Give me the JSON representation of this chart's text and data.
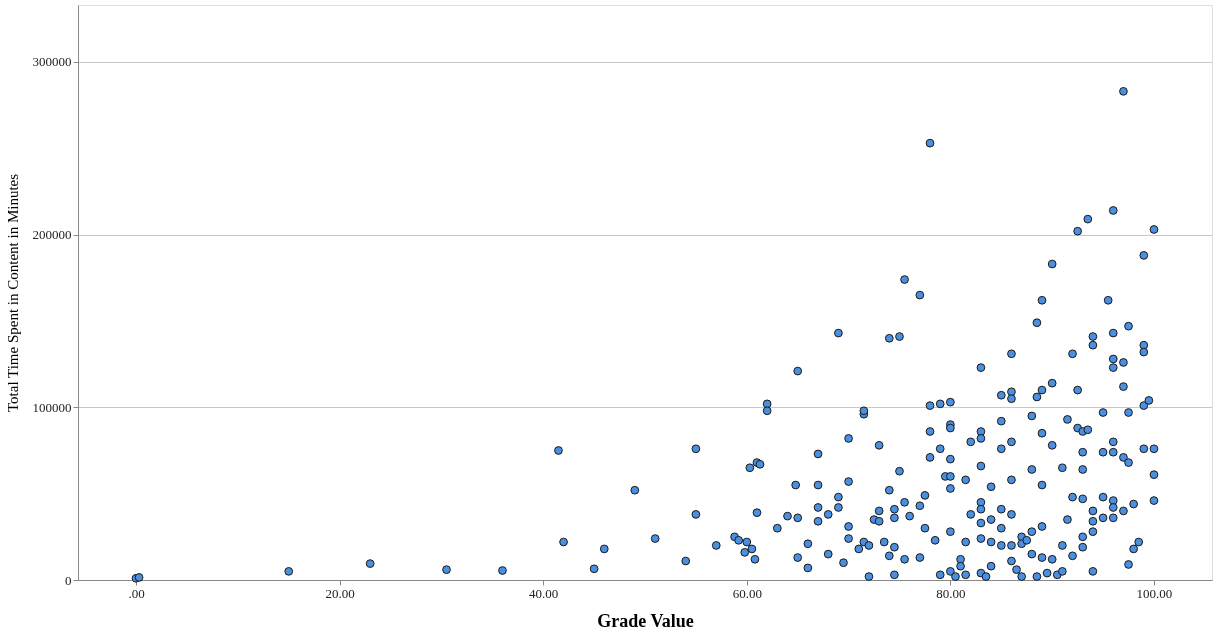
{
  "chart_data": {
    "type": "scatter",
    "xlabel": "Grade Value",
    "ylabel": "Total Time Spent in Content in Minutes",
    "xlim": [
      -5.7,
      105.7
    ],
    "ylim": [
      0,
      333000
    ],
    "xticks": [
      {
        "value": 0,
        "label": ".00"
      },
      {
        "value": 20,
        "label": "20.00"
      },
      {
        "value": 40,
        "label": "40.00"
      },
      {
        "value": 60,
        "label": "60.00"
      },
      {
        "value": 80,
        "label": "80.00"
      },
      {
        "value": 100,
        "label": "100.00"
      }
    ],
    "yticks": [
      0,
      100000,
      200000,
      300000
    ],
    "grid": "y",
    "marker": "circle",
    "series": [
      {
        "color": "#4a8fe0",
        "x": [
          0,
          0.3,
          15,
          23,
          30.5,
          36,
          41.5,
          42,
          45,
          46,
          49,
          51,
          54,
          55,
          55,
          57,
          58.8,
          59.2,
          59.8,
          60,
          60.3,
          60.5,
          60.8,
          61,
          61,
          61.3,
          62,
          62,
          63,
          64,
          64.8,
          65,
          65,
          65,
          66,
          66,
          67,
          67,
          67,
          67,
          68,
          68,
          69,
          69,
          69,
          69.5,
          70,
          70,
          70,
          70,
          71,
          71.5,
          71.5,
          71.5,
          72,
          72,
          72.5,
          73,
          73,
          73,
          73.5,
          74,
          74,
          74,
          74.5,
          74.5,
          74.5,
          74.5,
          75,
          75,
          75.5,
          75.5,
          75.5,
          76,
          77,
          77,
          77,
          77.5,
          77.5,
          78,
          78,
          78,
          78,
          78.5,
          79,
          79,
          79,
          79.5,
          80,
          80,
          80,
          80,
          80,
          80,
          80,
          80,
          80.5,
          81,
          81,
          81.5,
          81.5,
          81.5,
          82,
          82,
          83,
          83,
          83,
          83,
          83,
          83,
          83,
          83,
          83,
          83.5,
          84,
          84,
          84,
          84,
          85,
          85,
          85,
          85,
          85,
          85,
          86,
          86,
          86,
          86,
          86,
          86,
          86,
          86,
          86.5,
          87,
          87,
          87,
          87.5,
          88,
          88,
          88,
          88,
          88.5,
          88.5,
          88.5,
          89,
          89,
          89,
          89,
          89,
          89,
          89.5,
          90,
          90,
          90,
          90,
          90.5,
          91,
          91,
          91,
          91.5,
          91.5,
          92,
          92,
          92,
          92.5,
          92.5,
          92.5,
          93,
          93,
          93,
          93,
          93,
          93,
          93.5,
          93.5,
          94,
          94,
          94,
          94,
          94,
          94,
          95,
          95,
          95,
          95,
          95.5,
          96,
          96,
          96,
          96,
          96,
          96,
          96,
          96,
          96,
          97,
          97,
          97,
          97,
          97,
          97.5,
          97.5,
          97.5,
          97.5,
          98,
          98,
          98.5,
          99,
          99,
          99,
          99,
          99,
          99.5,
          100,
          100,
          100,
          100
        ],
        "values": [
          1000,
          1500,
          5000,
          9500,
          6000,
          5500,
          75000,
          22000,
          6500,
          18000,
          52000,
          24000,
          11000,
          76000,
          38000,
          20000,
          25000,
          23000,
          16000,
          22000,
          65000,
          18000,
          12000,
          39000,
          68000,
          67000,
          102000,
          98000,
          30000,
          37000,
          55000,
          36000,
          13000,
          121000,
          21000,
          7000,
          73000,
          55000,
          42000,
          34000,
          38000,
          15000,
          143000,
          48000,
          42000,
          10000,
          82000,
          57000,
          31000,
          24000,
          18000,
          22000,
          96000,
          98000,
          2000,
          20000,
          35000,
          78000,
          40000,
          34000,
          22000,
          140000,
          52000,
          14000,
          3000,
          41000,
          36000,
          19000,
          141000,
          63000,
          174000,
          45000,
          12000,
          37000,
          165000,
          43000,
          13000,
          49000,
          30000,
          253000,
          101000,
          86000,
          71000,
          23000,
          102000,
          76000,
          3000,
          60000,
          103000,
          90000,
          88000,
          70000,
          60000,
          53000,
          28000,
          5000,
          2000,
          12000,
          8000,
          22000,
          58000,
          3000,
          80000,
          38000,
          123000,
          86000,
          82000,
          66000,
          45000,
          41000,
          33000,
          24000,
          4000,
          2000,
          54000,
          35000,
          22000,
          8000,
          107000,
          92000,
          76000,
          41000,
          30000,
          20000,
          131000,
          109000,
          105000,
          80000,
          58000,
          38000,
          20000,
          11000,
          6000,
          25000,
          21000,
          2000,
          23000,
          95000,
          64000,
          28000,
          15000,
          149000,
          106000,
          2000,
          162000,
          110000,
          85000,
          55000,
          31000,
          13000,
          4000,
          183000,
          114000,
          78000,
          12000,
          3000,
          65000,
          20000,
          5000,
          93000,
          35000,
          131000,
          48000,
          14000,
          202000,
          110000,
          88000,
          86000,
          74000,
          64000,
          47000,
          25000,
          19000,
          209000,
          87000,
          141000,
          136000,
          40000,
          34000,
          28000,
          5000,
          97000,
          74000,
          48000,
          36000,
          162000,
          214000,
          143000,
          128000,
          123000,
          80000,
          74000,
          46000,
          42000,
          36000,
          283000,
          126000,
          112000,
          71000,
          40000,
          147000,
          97000,
          68000,
          9000,
          44000,
          18000,
          22000,
          188000,
          136000,
          132000,
          101000,
          76000,
          104000,
          203000,
          76000,
          61000,
          46000
        ]
      }
    ]
  }
}
